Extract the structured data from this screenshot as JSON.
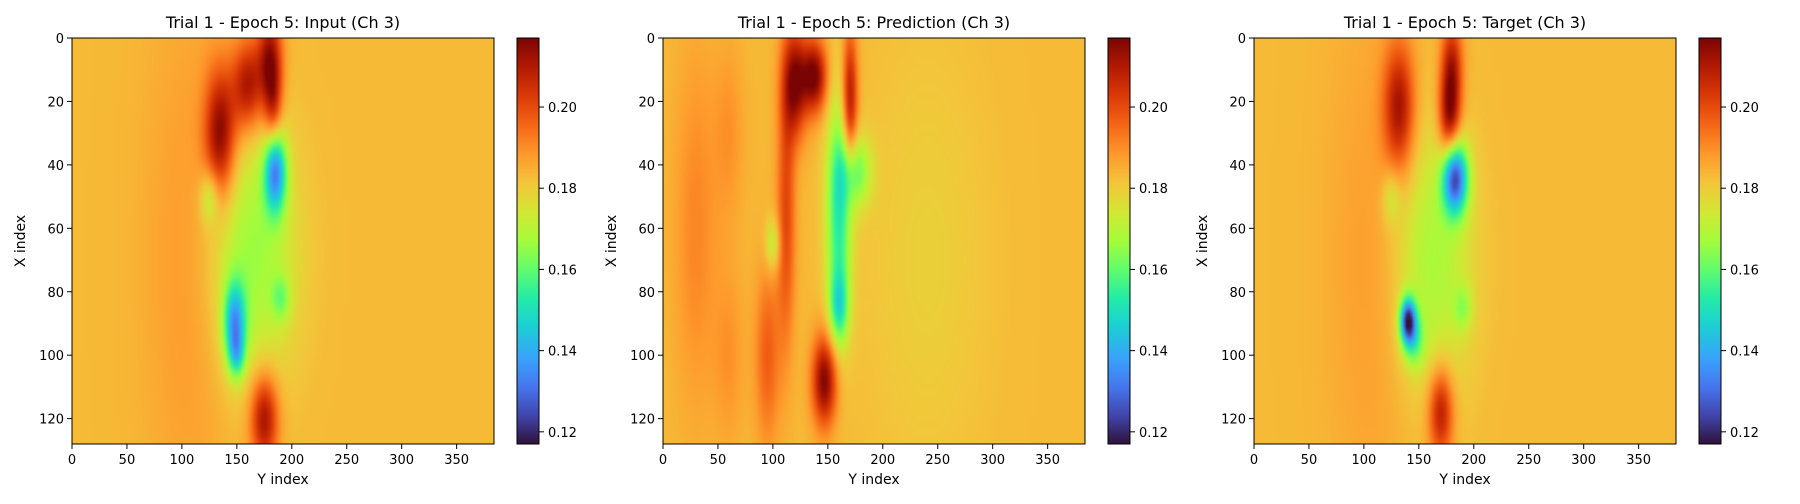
{
  "figure": {
    "panel_titles": [
      "Trial 1 - Epoch 5: Input (Ch 3)",
      "Trial 1 - Epoch 5: Prediction (Ch 3)",
      "Trial 1 - Epoch 5: Target (Ch 3)"
    ]
  },
  "chart_data": [
    {
      "type": "heatmap",
      "title": "Trial 1 - Epoch 5: Input (Ch 3)",
      "xlabel": "Y index",
      "ylabel": "X index",
      "xlim": [
        0,
        384
      ],
      "ylim": [
        128,
        0
      ],
      "xticks": [
        0,
        50,
        100,
        150,
        200,
        250,
        300,
        350
      ],
      "yticks": [
        0,
        20,
        40,
        60,
        80,
        100,
        120
      ],
      "colormap": "turbo",
      "colorbar": {
        "min": 0.117,
        "max": 0.217,
        "ticks": [
          "0.12",
          "0.14",
          "0.16",
          "0.18",
          "0.20"
        ]
      },
      "background_value": 0.183,
      "features": [
        {
          "x": 135,
          "y": 30,
          "sx": 10,
          "sy": 14,
          "amp": 0.032
        },
        {
          "x": 160,
          "y": 15,
          "sx": 10,
          "sy": 10,
          "amp": 0.028
        },
        {
          "x": 180,
          "y": 6,
          "sx": 8,
          "sy": 10,
          "amp": 0.028
        },
        {
          "x": 183,
          "y": 22,
          "sx": 6,
          "sy": 10,
          "amp": 0.022
        },
        {
          "x": 175,
          "y": 120,
          "sx": 9,
          "sy": 10,
          "amp": 0.03
        },
        {
          "x": 110,
          "y": 70,
          "sx": 30,
          "sy": 60,
          "amp": 0.006
        },
        {
          "x": 185,
          "y": 42,
          "sx": 7,
          "sy": 9,
          "amp": -0.045
        },
        {
          "x": 148,
          "y": 90,
          "sx": 7,
          "sy": 9,
          "amp": -0.04
        },
        {
          "x": 163,
          "y": 68,
          "sx": 28,
          "sy": 28,
          "amp": -0.018
        },
        {
          "x": 150,
          "y": 100,
          "sx": 5,
          "sy": 5,
          "amp": -0.018
        },
        {
          "x": 125,
          "y": 50,
          "sx": 6,
          "sy": 6,
          "amp": -0.014
        },
        {
          "x": 190,
          "y": 82,
          "sx": 6,
          "sy": 5,
          "amp": -0.014
        }
      ]
    },
    {
      "type": "heatmap",
      "title": "Trial 1 - Epoch 5: Prediction (Ch 3)",
      "xlabel": "Y index",
      "ylabel": "X index",
      "xlim": [
        0,
        384
      ],
      "ylim": [
        128,
        0
      ],
      "xticks": [
        0,
        50,
        100,
        150,
        200,
        250,
        300,
        350
      ],
      "yticks": [
        0,
        20,
        40,
        60,
        80,
        100,
        120
      ],
      "colormap": "turbo",
      "colorbar": {
        "min": 0.117,
        "max": 0.217,
        "ticks": [
          "0.12",
          "0.14",
          "0.16",
          "0.18",
          "0.20"
        ]
      },
      "background_value": 0.183,
      "features": [
        {
          "x": 120,
          "y": 14,
          "sx": 8,
          "sy": 12,
          "amp": 0.032
        },
        {
          "x": 138,
          "y": 12,
          "sx": 8,
          "sy": 8,
          "amp": 0.034
        },
        {
          "x": 170,
          "y": 20,
          "sx": 5,
          "sy": 16,
          "amp": 0.03
        },
        {
          "x": 147,
          "y": 108,
          "sx": 8,
          "sy": 10,
          "amp": 0.034
        },
        {
          "x": 112,
          "y": 55,
          "sx": 6,
          "sy": 30,
          "amp": 0.018
        },
        {
          "x": 95,
          "y": 100,
          "sx": 8,
          "sy": 20,
          "amp": 0.014
        },
        {
          "x": 30,
          "y": 60,
          "sx": 14,
          "sy": 40,
          "amp": 0.008
        },
        {
          "x": 60,
          "y": 30,
          "sx": 10,
          "sy": 20,
          "amp": 0.006
        },
        {
          "x": 60,
          "y": 100,
          "sx": 10,
          "sy": 20,
          "amp": 0.006
        },
        {
          "x": 240,
          "y": 70,
          "sx": 40,
          "sy": 50,
          "amp": -0.004
        },
        {
          "x": 160,
          "y": 55,
          "sx": 8,
          "sy": 25,
          "amp": -0.03
        },
        {
          "x": 175,
          "y": 42,
          "sx": 10,
          "sy": 8,
          "amp": -0.022
        },
        {
          "x": 160,
          "y": 85,
          "sx": 6,
          "sy": 8,
          "amp": -0.022
        },
        {
          "x": 100,
          "y": 65,
          "sx": 5,
          "sy": 6,
          "amp": -0.014
        }
      ]
    },
    {
      "type": "heatmap",
      "title": "Trial 1 - Epoch 5: Target (Ch 3)",
      "xlabel": "Y index",
      "ylabel": "X index",
      "xlim": [
        0,
        384
      ],
      "ylim": [
        128,
        0
      ],
      "xticks": [
        0,
        50,
        100,
        150,
        200,
        250,
        300,
        350
      ],
      "yticks": [
        0,
        20,
        40,
        60,
        80,
        100,
        120
      ],
      "colormap": "turbo",
      "colorbar": {
        "min": 0.117,
        "max": 0.217,
        "ticks": [
          "0.12",
          "0.14",
          "0.16",
          "0.18",
          "0.20"
        ]
      },
      "background_value": 0.183,
      "features": [
        {
          "x": 132,
          "y": 22,
          "sx": 10,
          "sy": 14,
          "amp": 0.028
        },
        {
          "x": 178,
          "y": 25,
          "sx": 7,
          "sy": 10,
          "amp": 0.032
        },
        {
          "x": 180,
          "y": 8,
          "sx": 7,
          "sy": 10,
          "amp": 0.024
        },
        {
          "x": 170,
          "y": 118,
          "sx": 8,
          "sy": 10,
          "amp": 0.028
        },
        {
          "x": 110,
          "y": 70,
          "sx": 30,
          "sy": 60,
          "amp": 0.005
        },
        {
          "x": 183,
          "y": 44,
          "sx": 8,
          "sy": 8,
          "amp": -0.055
        },
        {
          "x": 140,
          "y": 89,
          "sx": 5,
          "sy": 5,
          "amp": -0.055
        },
        {
          "x": 162,
          "y": 70,
          "sx": 25,
          "sy": 30,
          "amp": -0.016
        },
        {
          "x": 145,
          "y": 95,
          "sx": 7,
          "sy": 6,
          "amp": -0.02
        },
        {
          "x": 125,
          "y": 50,
          "sx": 6,
          "sy": 6,
          "amp": -0.01
        },
        {
          "x": 190,
          "y": 85,
          "sx": 6,
          "sy": 5,
          "amp": -0.012
        }
      ]
    }
  ]
}
